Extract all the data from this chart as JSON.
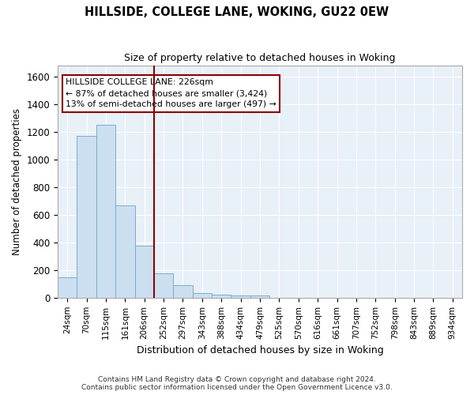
{
  "title": "HILLSIDE, COLLEGE LANE, WOKING, GU22 0EW",
  "subtitle": "Size of property relative to detached houses in Woking",
  "xlabel": "Distribution of detached houses by size in Woking",
  "ylabel": "Number of detached properties",
  "categories": [
    "24sqm",
    "70sqm",
    "115sqm",
    "161sqm",
    "206sqm",
    "252sqm",
    "297sqm",
    "343sqm",
    "388sqm",
    "434sqm",
    "479sqm",
    "525sqm",
    "570sqm",
    "616sqm",
    "661sqm",
    "707sqm",
    "752sqm",
    "798sqm",
    "843sqm",
    "889sqm",
    "934sqm"
  ],
  "values": [
    150,
    1170,
    1250,
    670,
    375,
    175,
    90,
    35,
    22,
    18,
    18,
    0,
    0,
    0,
    0,
    0,
    0,
    0,
    0,
    0,
    0
  ],
  "bar_color": "#ccdff0",
  "bar_edge_color": "#7aadcc",
  "background_color": "#e8f0f8",
  "grid_color": "#ffffff",
  "annotation_line1": "HILLSIDE COLLEGE LANE: 226sqm",
  "annotation_line2": "← 87% of detached houses are smaller (3,424)",
  "annotation_line3": "13% of semi-detached houses are larger (497) →",
  "vline_x": 4.5,
  "footnote": "Contains HM Land Registry data © Crown copyright and database right 2024.\nContains public sector information licensed under the Open Government Licence v3.0.",
  "ylim": [
    0,
    1680
  ],
  "yticks": [
    0,
    200,
    400,
    600,
    800,
    1000,
    1200,
    1400,
    1600
  ]
}
